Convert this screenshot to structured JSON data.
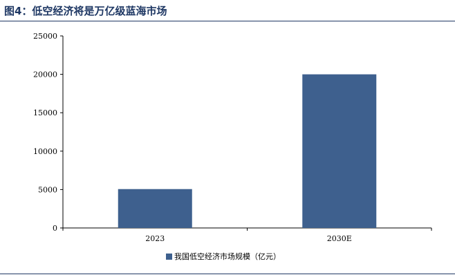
{
  "header": {
    "title": "图4：低空经济将是万亿级蓝海市场"
  },
  "chart_data": {
    "type": "bar",
    "categories": [
      "2023",
      "2030E"
    ],
    "series": [
      {
        "name": "我国低空经济市场规模（亿元）",
        "values": [
          5060,
          20000
        ],
        "color": "#3e608e"
      }
    ],
    "title": "",
    "xlabel": "",
    "ylabel": "",
    "ylim": [
      0,
      25000
    ],
    "yticks": [
      0,
      5000,
      10000,
      15000,
      20000,
      25000
    ],
    "grid": false,
    "legend_position": "bottom-center"
  }
}
